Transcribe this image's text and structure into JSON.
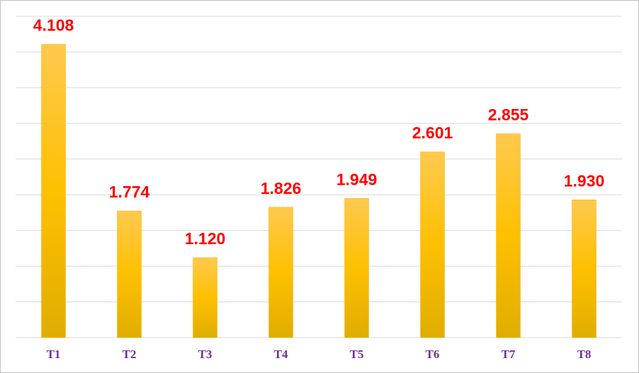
{
  "chart_data": {
    "type": "bar",
    "categories": [
      "T1",
      "T2",
      "T3",
      "T4",
      "T5",
      "T6",
      "T7",
      "T8"
    ],
    "values": [
      4108,
      1774,
      1120,
      1826,
      1949,
      2601,
      2855,
      1930
    ],
    "value_labels": [
      "4.108",
      "1.774",
      "1.120",
      "1.826",
      "1.949",
      "2.601",
      "2.855",
      "1.930"
    ],
    "color": "#ffc000",
    "ylim": [
      0,
      4500
    ],
    "yticks": [
      0,
      500,
      1000,
      1500,
      2000,
      2500,
      3000,
      3500,
      4000,
      4500
    ],
    "grid": true
  }
}
